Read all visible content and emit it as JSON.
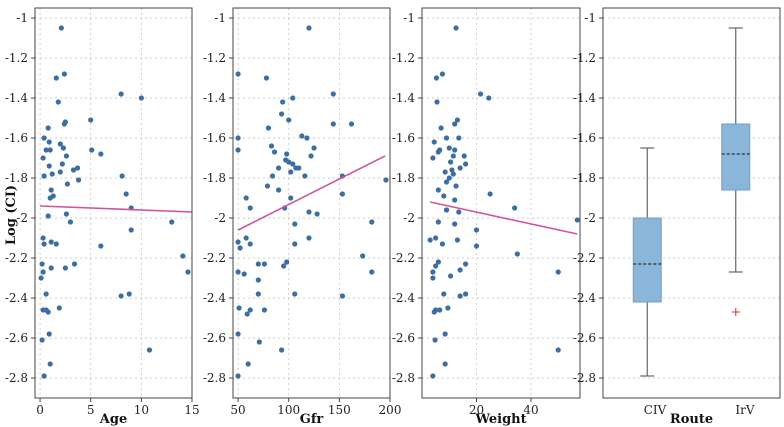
{
  "chart_data": [
    {
      "type": "scatter",
      "title": "",
      "xlabel": "Age",
      "ylabel": "Log (CI)",
      "xlim": [
        -0.5,
        15
      ],
      "ylim": [
        -2.9,
        -0.95
      ],
      "xticks": [
        0,
        5,
        10,
        15
      ],
      "yticks": [
        -1,
        -1.2,
        -1.4,
        -1.6,
        -1.8,
        -2,
        -2.2,
        -2.4,
        -2.6,
        -2.8
      ],
      "grid": true,
      "fit_line": [
        [
          0,
          -1.94
        ],
        [
          15,
          -1.97
        ]
      ],
      "series": [
        {
          "points": [
            [
              2.1,
              -1.05
            ],
            [
              2.4,
              -1.28
            ],
            [
              1.6,
              -1.3
            ],
            [
              8.0,
              -1.38
            ],
            [
              10.0,
              -1.4
            ],
            [
              1.8,
              -1.42
            ],
            [
              5.0,
              -1.51
            ],
            [
              2.5,
              -1.52
            ],
            [
              2.4,
              -1.53
            ],
            [
              0.8,
              -1.55
            ],
            [
              0.4,
              -1.6
            ],
            [
              0.9,
              -1.62
            ],
            [
              2.0,
              -1.63
            ],
            [
              2.3,
              -1.65
            ],
            [
              0.6,
              -1.66
            ],
            [
              1.0,
              -1.66
            ],
            [
              5.1,
              -1.66
            ],
            [
              6.0,
              -1.68
            ],
            [
              2.6,
              -1.69
            ],
            [
              0.3,
              -1.7
            ],
            [
              2.2,
              -1.73
            ],
            [
              0.9,
              -1.74
            ],
            [
              3.7,
              -1.75
            ],
            [
              3.3,
              -1.76
            ],
            [
              2.0,
              -1.77
            ],
            [
              1.2,
              -1.78
            ],
            [
              0.4,
              -1.79
            ],
            [
              8.1,
              -1.79
            ],
            [
              3.8,
              -1.81
            ],
            [
              2.7,
              -1.83
            ],
            [
              1.1,
              -1.86
            ],
            [
              8.5,
              -1.88
            ],
            [
              1.3,
              -1.89
            ],
            [
              1.0,
              -1.9
            ],
            [
              9.0,
              -1.95
            ],
            [
              2.6,
              -1.98
            ],
            [
              0.8,
              -1.99
            ],
            [
              3.0,
              -2.02
            ],
            [
              13.0,
              -2.02
            ],
            [
              9.0,
              -2.06
            ],
            [
              0.3,
              -2.1
            ],
            [
              1.1,
              -2.12
            ],
            [
              0.4,
              -2.13
            ],
            [
              1.6,
              -2.13
            ],
            [
              6.0,
              -2.14
            ],
            [
              14.1,
              -2.19
            ],
            [
              0.2,
              -2.23
            ],
            [
              3.4,
              -2.23
            ],
            [
              1.1,
              -2.25
            ],
            [
              2.5,
              -2.25
            ],
            [
              0.3,
              -2.27
            ],
            [
              14.6,
              -2.27
            ],
            [
              0.1,
              -2.3
            ],
            [
              0.6,
              -2.38
            ],
            [
              8.0,
              -2.39
            ],
            [
              8.8,
              -2.38
            ],
            [
              1.9,
              -2.45
            ],
            [
              0.3,
              -2.46
            ],
            [
              0.6,
              -2.46
            ],
            [
              0.8,
              -2.47
            ],
            [
              0.9,
              -2.58
            ],
            [
              0.2,
              -2.61
            ],
            [
              10.8,
              -2.66
            ],
            [
              1.0,
              -2.73
            ],
            [
              0.4,
              -2.79
            ]
          ]
        }
      ]
    },
    {
      "type": "scatter",
      "title": "",
      "xlabel": "Gfr",
      "ylabel": "",
      "xlim": [
        45,
        200
      ],
      "ylim": [
        -2.9,
        -0.95
      ],
      "xticks": [
        50,
        100,
        150,
        200
      ],
      "yticks": [
        -1,
        -1.2,
        -1.4,
        -1.6,
        -1.8,
        -2,
        -2.2,
        -2.4,
        -2.6,
        -2.8
      ],
      "grid": true,
      "fit_line": [
        [
          50,
          -2.06
        ],
        [
          195,
          -1.69
        ]
      ],
      "series": [
        {
          "points": [
            [
              120,
              -1.05
            ],
            [
              50,
              -1.28
            ],
            [
              78,
              -1.3
            ],
            [
              144,
              -1.38
            ],
            [
              104,
              -1.4
            ],
            [
              94,
              -1.42
            ],
            [
              93,
              -1.48
            ],
            [
              100,
              -1.51
            ],
            [
              144,
              -1.53
            ],
            [
              162,
              -1.53
            ],
            [
              80,
              -1.55
            ],
            [
              113,
              -1.59
            ],
            [
              50,
              -1.6
            ],
            [
              118,
              -1.6
            ],
            [
              83,
              -1.64
            ],
            [
              125,
              -1.65
            ],
            [
              50,
              -1.66
            ],
            [
              86,
              -1.67
            ],
            [
              98,
              -1.68
            ],
            [
              122,
              -1.69
            ],
            [
              97,
              -1.71
            ],
            [
              100,
              -1.72
            ],
            [
              104,
              -1.73
            ],
            [
              90,
              -1.75
            ],
            [
              107,
              -1.75
            ],
            [
              110,
              -1.75
            ],
            [
              102,
              -1.77
            ],
            [
              84,
              -1.79
            ],
            [
              116,
              -1.79
            ],
            [
              153,
              -1.79
            ],
            [
              196,
              -1.81
            ],
            [
              79,
              -1.84
            ],
            [
              90,
              -1.86
            ],
            [
              153,
              -1.88
            ],
            [
              58,
              -1.9
            ],
            [
              102,
              -1.9
            ],
            [
              62,
              -1.95
            ],
            [
              96,
              -1.95
            ],
            [
              120,
              -1.97
            ],
            [
              128,
              -1.98
            ],
            [
              182,
              -2.02
            ],
            [
              106,
              -2.03
            ],
            [
              58,
              -2.1
            ],
            [
              120,
              -2.1
            ],
            [
              50,
              -2.12
            ],
            [
              62,
              -2.13
            ],
            [
              106,
              -2.13
            ],
            [
              52,
              -2.15
            ],
            [
              173,
              -2.19
            ],
            [
              98,
              -2.22
            ],
            [
              50,
              -2.27
            ],
            [
              56,
              -2.28
            ],
            [
              70,
              -2.23
            ],
            [
              76,
              -2.23
            ],
            [
              95,
              -2.24
            ],
            [
              182,
              -2.27
            ],
            [
              70,
              -2.31
            ],
            [
              70,
              -2.38
            ],
            [
              106,
              -2.38
            ],
            [
              153,
              -2.39
            ],
            [
              51,
              -2.45
            ],
            [
              62,
              -2.46
            ],
            [
              76,
              -2.46
            ],
            [
              59,
              -2.48
            ],
            [
              50,
              -2.58
            ],
            [
              71,
              -2.62
            ],
            [
              93,
              -2.66
            ],
            [
              60,
              -2.73
            ],
            [
              50,
              -2.79
            ]
          ]
        }
      ]
    },
    {
      "type": "scatter",
      "title": "",
      "xlabel": "Weight",
      "ylabel": "",
      "xlim": [
        0,
        58
      ],
      "ylim": [
        -2.9,
        -0.95
      ],
      "xticks": [
        20,
        40
      ],
      "yticks": [
        -1,
        -1.2,
        -1.4,
        -1.6,
        -1.8,
        -2,
        -2.2,
        -2.4,
        -2.6,
        -2.8
      ],
      "grid": true,
      "fit_line": [
        [
          3,
          -1.92
        ],
        [
          57,
          -2.08
        ]
      ],
      "series": [
        {
          "points": [
            [
              12.5,
              -1.05
            ],
            [
              7.5,
              -1.28
            ],
            [
              5.3,
              -1.3
            ],
            [
              21.5,
              -1.38
            ],
            [
              24.5,
              -1.4
            ],
            [
              5.5,
              -1.42
            ],
            [
              13.0,
              -1.51
            ],
            [
              12.0,
              -1.53
            ],
            [
              7.0,
              -1.55
            ],
            [
              9.0,
              -1.6
            ],
            [
              13.5,
              -1.6
            ],
            [
              4.5,
              -1.62
            ],
            [
              10.0,
              -1.65
            ],
            [
              6.5,
              -1.66
            ],
            [
              12.0,
              -1.66
            ],
            [
              6.0,
              -1.67
            ],
            [
              11.5,
              -1.69
            ],
            [
              15.5,
              -1.69
            ],
            [
              4.0,
              -1.7
            ],
            [
              10.5,
              -1.72
            ],
            [
              16.0,
              -1.73
            ],
            [
              14.0,
              -1.75
            ],
            [
              11.0,
              -1.76
            ],
            [
              8.5,
              -1.77
            ],
            [
              11.5,
              -1.78
            ],
            [
              10.0,
              -1.8
            ],
            [
              9.0,
              -1.82
            ],
            [
              12.5,
              -1.84
            ],
            [
              6.0,
              -1.86
            ],
            [
              25.0,
              -1.88
            ],
            [
              8.0,
              -1.89
            ],
            [
              12.0,
              -1.91
            ],
            [
              34.0,
              -1.95
            ],
            [
              9.0,
              -1.96
            ],
            [
              13.5,
              -1.97
            ],
            [
              57.0,
              -2.01
            ],
            [
              6.0,
              -2.02
            ],
            [
              12.0,
              -2.03
            ],
            [
              20.0,
              -2.06
            ],
            [
              3.0,
              -2.11
            ],
            [
              5.0,
              -2.1
            ],
            [
              13.0,
              -2.11
            ],
            [
              7.5,
              -2.13
            ],
            [
              20.0,
              -2.14
            ],
            [
              35.0,
              -2.18
            ],
            [
              6.0,
              -2.22
            ],
            [
              5.0,
              -2.24
            ],
            [
              16.0,
              -2.23
            ],
            [
              4.0,
              -2.27
            ],
            [
              14.0,
              -2.26
            ],
            [
              50.0,
              -2.27
            ],
            [
              10.5,
              -2.29
            ],
            [
              4.0,
              -2.3
            ],
            [
              16.0,
              -2.38
            ],
            [
              8.0,
              -2.38
            ],
            [
              14.0,
              -2.39
            ],
            [
              9.5,
              -2.45
            ],
            [
              5.0,
              -2.46
            ],
            [
              6.5,
              -2.46
            ],
            [
              4.5,
              -2.47
            ],
            [
              8.5,
              -2.58
            ],
            [
              4.8,
              -2.61
            ],
            [
              50.0,
              -2.66
            ],
            [
              8.5,
              -2.73
            ],
            [
              4.0,
              -2.79
            ]
          ]
        }
      ]
    },
    {
      "type": "box",
      "title": "",
      "xlabel": "Route",
      "ylabel": "",
      "categories": [
        "CIV",
        "IrV"
      ],
      "ylim": [
        -2.9,
        -0.95
      ],
      "yticks": [
        -1,
        -1.2,
        -1.4,
        -1.6,
        -1.8,
        -2,
        -2.2,
        -2.4,
        -2.6,
        -2.8
      ],
      "grid": true,
      "boxes": [
        {
          "category": "CIV",
          "whisker_low": -2.79,
          "q1": -2.42,
          "median": -2.23,
          "q3": -2.0,
          "whisker_high": -1.65,
          "outliers": []
        },
        {
          "category": "IrV",
          "whisker_low": -2.27,
          "q1": -1.86,
          "median": -1.68,
          "q3": -1.53,
          "whisker_high": -1.05,
          "outliers": [
            -2.47
          ]
        }
      ]
    }
  ],
  "colors": {
    "points": "#3b6fa3",
    "fit_line": "#d1549a",
    "box_fill": "#8ab6da",
    "box_stroke": "#6f9fc8",
    "whisker": "#666666",
    "median": "#333333",
    "outlier": "#e0483b",
    "grid": "#bfbfbf",
    "axis": "#444444"
  }
}
